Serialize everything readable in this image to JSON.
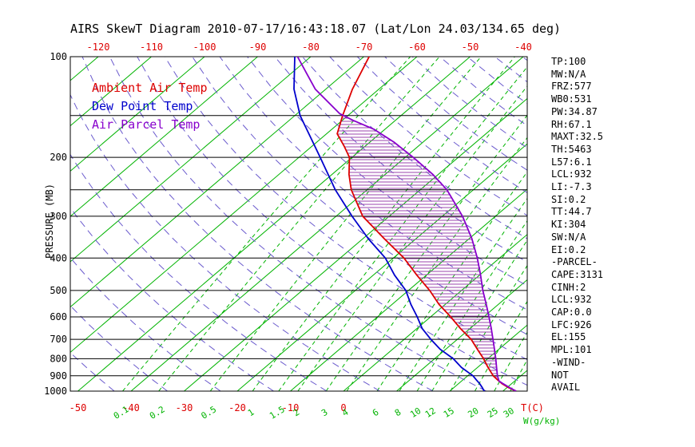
{
  "title": "AIRS SkewT Diagram 2010-07-17/16:43:18.07 (Lat/Lon 24.03/134.65 deg)",
  "colors": {
    "background": "#ffffff",
    "grid": "#000000",
    "axis_text": "#000000",
    "isotherms": "#00b300",
    "dry_adiabats": "#6a5acd",
    "temp_ticks": "#dd0000",
    "mixing_ticks": "#00b300",
    "hatch": "#9b44ad"
  },
  "legend": {
    "items": [
      {
        "label": "Ambient Air Temp",
        "color": "#dd0000"
      },
      {
        "label": "Dew Point Temp",
        "color": "#0000cc"
      },
      {
        "label": "Air Parcel Temp",
        "color": "#8800cc"
      }
    ]
  },
  "stats": {
    "lines": [
      "TP:100",
      "MW:N/A",
      "FRZ:577",
      "WB0:531",
      "PW:34.87",
      "RH:67.1",
      "MAXT:32.5",
      "TH:5463",
      "L57:6.1",
      "LCL:932",
      "LI:-7.3",
      "SI:0.2",
      "TT:44.7",
      "KI:304",
      "SW:N/A",
      "EI:0.2",
      "-PARCEL-",
      "CAPE:3131",
      "CINH:2",
      "LCL:932",
      "CAP:0.0",
      "LFC:926",
      "EL:155",
      "MPL:101",
      "-WIND-",
      "NOT",
      "AVAIL"
    ]
  },
  "chart_data": {
    "type": "line",
    "plot_kind": "skew-t-log-p",
    "title": "AIRS SkewT Diagram 2010-07-17/16:43:18.07 (Lat/Lon 24.03/134.65 deg)",
    "x_axis": {
      "unit_label": "T(C)",
      "bottom_tick_labels": [
        -50,
        -40,
        -30,
        -20,
        -10,
        0
      ],
      "top_tick_labels": [
        -120,
        -110,
        -100,
        -90,
        -80,
        -70,
        -60,
        -50,
        -40
      ],
      "skewed": true
    },
    "y_axis": {
      "unit_label": "PRESSURE (MB)",
      "scale": "log",
      "inverted": true,
      "range_mb": [
        100,
        1000
      ],
      "tick_labels": [
        100,
        200,
        300,
        400,
        500,
        600,
        700,
        800,
        900,
        1000
      ],
      "grid_lines": [
        100,
        150,
        200,
        250,
        300,
        400,
        500,
        600,
        700,
        800,
        900,
        1000
      ]
    },
    "isotherms_C": {
      "min": -120,
      "max": 30,
      "step": 10
    },
    "dry_adiabats_theta_K": {
      "min": 220,
      "max": 450,
      "step": 10
    },
    "mixing_ratio_labels_g_kg": [
      0.1,
      0.2,
      0.5,
      1,
      1.5,
      2,
      3,
      4,
      6,
      8,
      10,
      12,
      15,
      20,
      25,
      30
    ],
    "mixing_unit_label": "W(g/kg)",
    "series": [
      {
        "name": "Ambient Air Temp",
        "color": "#dd0000",
        "points_p_mb_T_C": [
          [
            1000,
            32.5
          ],
          [
            975,
            30.2
          ],
          [
            950,
            28.2
          ],
          [
            925,
            26.5
          ],
          [
            900,
            24.8
          ],
          [
            850,
            22.0
          ],
          [
            800,
            19.2
          ],
          [
            750,
            16.0
          ],
          [
            700,
            12.6
          ],
          [
            650,
            8.2
          ],
          [
            600,
            3.8
          ],
          [
            550,
            -1.2
          ],
          [
            500,
            -6.0
          ],
          [
            450,
            -11.8
          ],
          [
            400,
            -18.0
          ],
          [
            350,
            -26.0
          ],
          [
            300,
            -35.0
          ],
          [
            250,
            -43.0
          ],
          [
            225,
            -46.8
          ],
          [
            200,
            -50.5
          ],
          [
            185,
            -54.0
          ],
          [
            170,
            -58.0
          ],
          [
            150,
            -61.0
          ],
          [
            125,
            -65.0
          ],
          [
            100,
            -69.0
          ]
        ]
      },
      {
        "name": "Dew Point Temp",
        "color": "#0000cc",
        "points_p_mb_T_C": [
          [
            1000,
            26.5
          ],
          [
            975,
            25.3
          ],
          [
            950,
            24.0
          ],
          [
            925,
            22.5
          ],
          [
            900,
            21.0
          ],
          [
            850,
            17.0
          ],
          [
            800,
            13.5
          ],
          [
            750,
            9.0
          ],
          [
            700,
            5.0
          ],
          [
            650,
            1.0
          ],
          [
            600,
            -2.5
          ],
          [
            550,
            -6.5
          ],
          [
            500,
            -10.5
          ],
          [
            450,
            -16.0
          ],
          [
            400,
            -21.5
          ],
          [
            350,
            -29.0
          ],
          [
            300,
            -37.0
          ],
          [
            250,
            -46.0
          ],
          [
            200,
            -56.0
          ],
          [
            150,
            -69.0
          ],
          [
            125,
            -76.0
          ],
          [
            100,
            -83.0
          ]
        ]
      },
      {
        "name": "Air Parcel Temp",
        "color": "#8800cc",
        "points_p_mb_T_C": [
          [
            1000,
            32.5
          ],
          [
            975,
            30.4
          ],
          [
            950,
            28.4
          ],
          [
            932,
            27.0
          ],
          [
            900,
            25.6
          ],
          [
            850,
            23.6
          ],
          [
            800,
            21.5
          ],
          [
            750,
            19.2
          ],
          [
            700,
            16.7
          ],
          [
            650,
            14.0
          ],
          [
            600,
            11.0
          ],
          [
            550,
            7.7
          ],
          [
            500,
            4.0
          ],
          [
            450,
            0.2
          ],
          [
            400,
            -4.2
          ],
          [
            350,
            -9.5
          ],
          [
            300,
            -16.2
          ],
          [
            250,
            -25.0
          ],
          [
            225,
            -31.0
          ],
          [
            200,
            -38.5
          ],
          [
            180,
            -45.5
          ],
          [
            165,
            -52.0
          ],
          [
            155,
            -58.0
          ],
          [
            148,
            -62.0
          ],
          [
            125,
            -72.0
          ],
          [
            100,
            -82.5
          ]
        ]
      }
    ],
    "hatched_region": {
      "between": [
        "Ambient Air Temp",
        "Air Parcel Temp"
      ],
      "p_from_mb": 930,
      "p_to_mb": 150
    }
  }
}
